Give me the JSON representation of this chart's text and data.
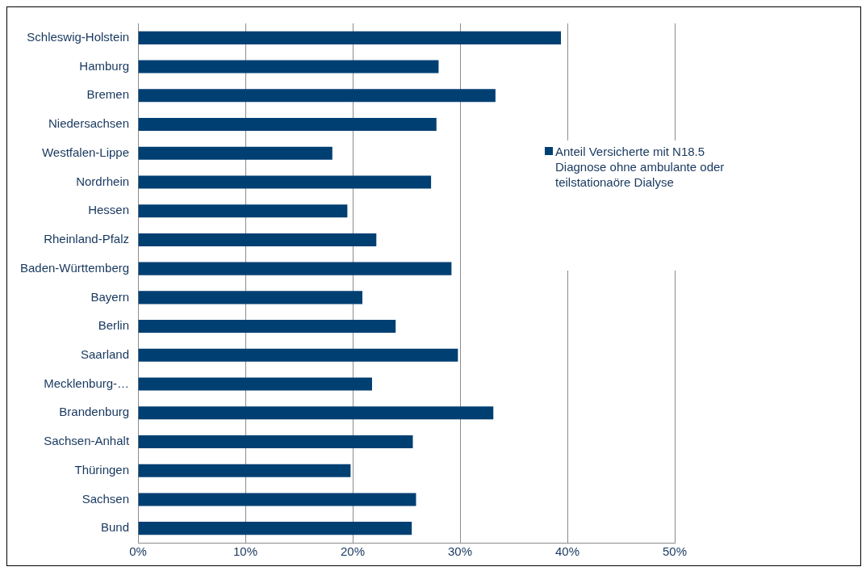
{
  "chart_data": {
    "type": "bar",
    "orientation": "horizontal",
    "categories": [
      "Schleswig-Holstein",
      "Hamburg",
      "Bremen",
      "Niedersachsen",
      "Westfalen-Lippe",
      "Nordrhein",
      "Hessen",
      "Rheinland-Pfalz",
      "Baden-Württemberg",
      "Bayern",
      "Berlin",
      "Saarland",
      "Mecklenburg-…",
      "Brandenburg",
      "Sachsen-Anhalt",
      "Thüringen",
      "Sachsen",
      "Bund"
    ],
    "series": [
      {
        "name": "Anteil Versicherte mit N18.5 Diagnose ohne ambulante oder teilstationaöre Dialyse",
        "color": "#003f72",
        "values": [
          39.4,
          28.0,
          33.3,
          27.8,
          18.1,
          27.3,
          19.5,
          22.2,
          29.2,
          20.9,
          24.0,
          29.8,
          21.8,
          33.1,
          25.6,
          19.8,
          25.9,
          25.5
        ]
      }
    ],
    "xlim": [
      0,
      50
    ],
    "xticks": [
      {
        "value": 0,
        "label": "0%"
      },
      {
        "value": 10,
        "label": "10%"
      },
      {
        "value": 20,
        "label": "20%"
      },
      {
        "value": 30,
        "label": "30%"
      },
      {
        "value": 40,
        "label": "40%"
      },
      {
        "value": 50,
        "label": "50%"
      }
    ],
    "grid": "x",
    "legend": "right"
  }
}
